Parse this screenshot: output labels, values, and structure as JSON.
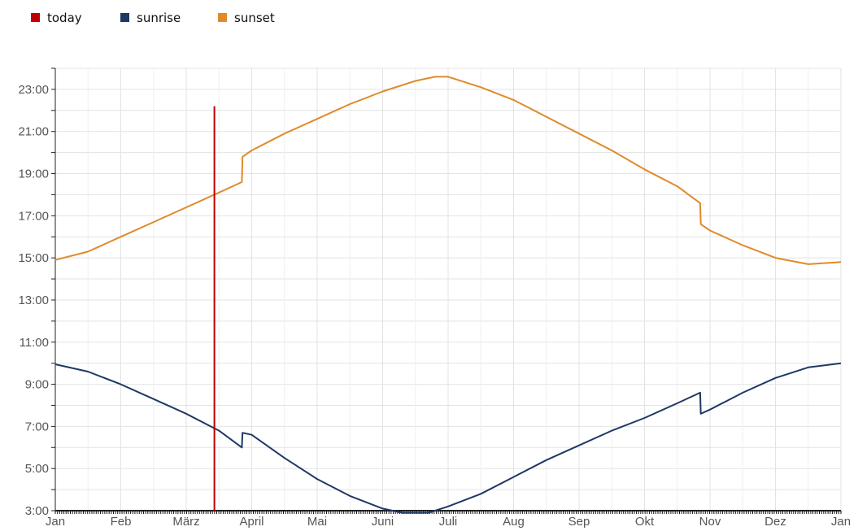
{
  "chart_data": {
    "type": "line",
    "legend": {
      "placement": "top-left",
      "items": [
        {
          "label": "today",
          "color": "#c00000"
        },
        {
          "label": "sunrise",
          "color": "#1f3864"
        },
        {
          "label": "sunset",
          "color": "#e08a2b"
        }
      ]
    },
    "x_axis": {
      "ticks": [
        {
          "label": "Jan",
          "month": 0
        },
        {
          "label": "Feb",
          "month": 1
        },
        {
          "label": "März",
          "month": 2
        },
        {
          "label": "April",
          "month": 3
        },
        {
          "label": "Mai",
          "month": 4
        },
        {
          "label": "Juni",
          "month": 5
        },
        {
          "label": "Juli",
          "month": 6
        },
        {
          "label": "Aug",
          "month": 7
        },
        {
          "label": "Sep",
          "month": 8
        },
        {
          "label": "Okt",
          "month": 9
        },
        {
          "label": "Nov",
          "month": 10
        },
        {
          "label": "Dez",
          "month": 11
        },
        {
          "label": "Jan",
          "month": 12
        }
      ]
    },
    "y_axis": {
      "range_hours": [
        3,
        24
      ],
      "tick_labels": [
        "3:00",
        "5:00",
        "7:00",
        "9:00",
        "11:00",
        "13:00",
        "15:00",
        "17:00",
        "19:00",
        "21:00",
        "23:00"
      ],
      "grid": true
    },
    "today_month": 2.43,
    "series": [
      {
        "name": "sunset",
        "color": "#e08a2b",
        "points": [
          [
            0,
            14.9
          ],
          [
            0.5,
            15.3
          ],
          [
            1,
            16.0
          ],
          [
            1.5,
            16.7
          ],
          [
            2,
            17.4
          ],
          [
            2.5,
            18.1
          ],
          [
            2.85,
            18.6
          ],
          [
            2.86,
            19.8
          ],
          [
            3.0,
            20.1
          ],
          [
            3.5,
            20.9
          ],
          [
            4,
            21.6
          ],
          [
            4.5,
            22.3
          ],
          [
            5,
            22.9
          ],
          [
            5.5,
            23.4
          ],
          [
            5.8,
            23.6
          ],
          [
            6,
            23.6
          ],
          [
            6.5,
            23.1
          ],
          [
            7,
            22.5
          ],
          [
            7.5,
            21.7
          ],
          [
            8,
            20.9
          ],
          [
            8.5,
            20.1
          ],
          [
            9,
            19.2
          ],
          [
            9.5,
            18.4
          ],
          [
            9.85,
            17.6
          ],
          [
            9.86,
            16.6
          ],
          [
            10,
            16.3
          ],
          [
            10.5,
            15.6
          ],
          [
            11,
            15.0
          ],
          [
            11.5,
            14.7
          ],
          [
            12,
            14.8
          ]
        ]
      },
      {
        "name": "sunrise",
        "color": "#1f3864",
        "points": [
          [
            0,
            9.95
          ],
          [
            0.5,
            9.6
          ],
          [
            1,
            9.0
          ],
          [
            1.5,
            8.3
          ],
          [
            2,
            7.6
          ],
          [
            2.5,
            6.8
          ],
          [
            2.85,
            6.0
          ],
          [
            2.86,
            6.7
          ],
          [
            3.0,
            6.6
          ],
          [
            3.5,
            5.5
          ],
          [
            4,
            4.5
          ],
          [
            4.5,
            3.7
          ],
          [
            5,
            3.1
          ],
          [
            5.3,
            2.9
          ],
          [
            5.7,
            2.9
          ],
          [
            6,
            3.2
          ],
          [
            6.5,
            3.8
          ],
          [
            7,
            4.6
          ],
          [
            7.5,
            5.4
          ],
          [
            8,
            6.1
          ],
          [
            8.5,
            6.8
          ],
          [
            9,
            7.4
          ],
          [
            9.5,
            8.1
          ],
          [
            9.85,
            8.6
          ],
          [
            9.86,
            7.6
          ],
          [
            10,
            7.8
          ],
          [
            10.5,
            8.6
          ],
          [
            11,
            9.3
          ],
          [
            11.5,
            9.8
          ],
          [
            12,
            10.0
          ]
        ]
      }
    ]
  }
}
